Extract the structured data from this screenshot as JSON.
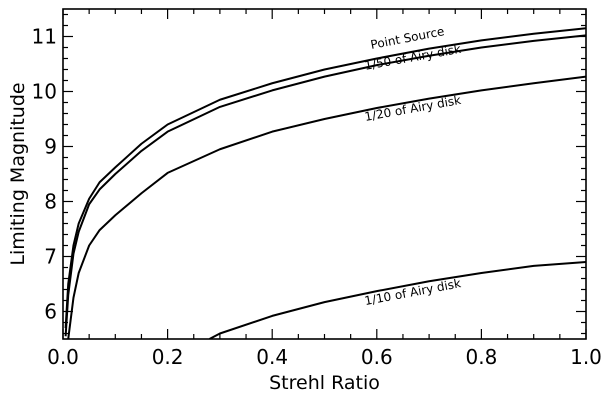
{
  "chart_data": {
    "type": "line",
    "xlabel": "Strehl Ratio",
    "ylabel": "Limiting Magnitude",
    "xlim": [
      0.0,
      1.0
    ],
    "ylim": [
      5.5,
      11.5
    ],
    "grid": false,
    "legend": "none",
    "x_ticks": [
      {
        "value": 0.0,
        "label": "0.0"
      },
      {
        "value": 0.2,
        "label": "0.2"
      },
      {
        "value": 0.4,
        "label": "0.4"
      },
      {
        "value": 0.6,
        "label": "0.6"
      },
      {
        "value": 0.8,
        "label": "0.8"
      },
      {
        "value": 1.0,
        "label": "1.0"
      }
    ],
    "y_ticks": [
      {
        "value": 6,
        "label": "6"
      },
      {
        "value": 7,
        "label": "7"
      },
      {
        "value": 8,
        "label": "8"
      },
      {
        "value": 9,
        "label": "9"
      },
      {
        "value": 10,
        "label": "10"
      },
      {
        "value": 11,
        "label": "11"
      }
    ],
    "series": [
      {
        "name": "Point Source",
        "label_at": {
          "x": 0.66,
          "y": 10.9
        },
        "x": [
          0.005,
          0.01,
          0.02,
          0.03,
          0.05,
          0.07,
          0.1,
          0.15,
          0.2,
          0.3,
          0.4,
          0.5,
          0.6,
          0.7,
          0.8,
          0.9,
          1.0
        ],
        "y": [
          5.7,
          6.5,
          7.2,
          7.6,
          8.05,
          8.35,
          8.62,
          9.05,
          9.4,
          9.85,
          10.15,
          10.4,
          10.6,
          10.78,
          10.93,
          11.05,
          11.15
        ]
      },
      {
        "name": "1/50 of Airy disk",
        "label_at": {
          "x": 0.67,
          "y": 10.55
        },
        "x": [
          0.005,
          0.01,
          0.02,
          0.03,
          0.05,
          0.07,
          0.1,
          0.15,
          0.2,
          0.3,
          0.4,
          0.5,
          0.6,
          0.7,
          0.8,
          0.9,
          1.0
        ],
        "y": [
          5.55,
          6.3,
          7.05,
          7.45,
          7.95,
          8.22,
          8.5,
          8.92,
          9.27,
          9.72,
          10.02,
          10.27,
          10.48,
          10.65,
          10.8,
          10.92,
          11.02
        ]
      },
      {
        "name": "1/20 of Airy disk",
        "label_at": {
          "x": 0.67,
          "y": 9.62
        },
        "x": [
          0.01,
          0.02,
          0.03,
          0.05,
          0.07,
          0.1,
          0.15,
          0.2,
          0.3,
          0.4,
          0.5,
          0.6,
          0.7,
          0.8,
          0.9,
          1.0
        ],
        "y": [
          5.5,
          6.25,
          6.7,
          7.2,
          7.48,
          7.75,
          8.15,
          8.52,
          8.95,
          9.27,
          9.5,
          9.7,
          9.87,
          10.02,
          10.15,
          10.27
        ]
      },
      {
        "name": "1/10 of Airy disk",
        "label_at": {
          "x": 0.67,
          "y": 6.28
        },
        "x": [
          0.28,
          0.3,
          0.4,
          0.5,
          0.6,
          0.7,
          0.8,
          0.9,
          1.0
        ],
        "y": [
          5.5,
          5.6,
          5.92,
          6.17,
          6.37,
          6.55,
          6.7,
          6.83,
          6.9
        ]
      }
    ]
  }
}
